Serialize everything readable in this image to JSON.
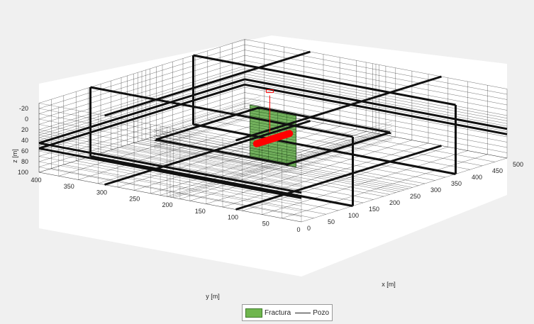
{
  "chart_data": {
    "type": "3d-grid",
    "xlabel": "x [m]",
    "ylabel": "y [m]",
    "zlabel": "z [m]",
    "xlim": [
      0,
      500
    ],
    "ylim": [
      0,
      400
    ],
    "zlim": [
      -30,
      100
    ],
    "z_reversed": true,
    "x_ticks": [
      "0",
      "50",
      "100",
      "150",
      "200",
      "250",
      "300",
      "350",
      "400",
      "450",
      "500"
    ],
    "y_ticks": [
      "0",
      "50",
      "100",
      "150",
      "200",
      "250",
      "300",
      "350",
      "400"
    ],
    "z_ticks": [
      "-20",
      "0",
      "20",
      "40",
      "60",
      "80",
      "100"
    ],
    "grid_x": [
      0,
      30,
      60,
      90,
      120,
      150,
      175,
      200,
      215,
      230,
      240,
      250,
      260,
      270,
      285,
      300,
      325,
      350,
      380,
      410,
      440,
      470,
      500
    ],
    "grid_y": [
      0,
      30,
      60,
      90,
      120,
      145,
      170,
      185,
      195,
      200,
      205,
      215,
      230,
      255,
      280,
      310,
      340,
      370,
      400
    ],
    "grid_z": [
      -30,
      -20,
      -10,
      0,
      10,
      20,
      25,
      30,
      35,
      40,
      45,
      50,
      55,
      60,
      70,
      80,
      90,
      100
    ],
    "bold_x": [
      125,
      375
    ],
    "bold_y": [
      100,
      300
    ],
    "bold_z": [
      45,
      55
    ],
    "fracture": {
      "x": 250,
      "y": [
        165,
        235
      ],
      "z": [
        -5,
        95
      ],
      "color": "#5fa845"
    },
    "well": {
      "x": [
        210,
        290
      ],
      "y": 200,
      "z": 50,
      "color": "#ff0000"
    },
    "survey_line": {
      "x": 250,
      "y": 205,
      "z": [
        -30,
        40
      ],
      "color": "#ff0000"
    },
    "legend": [
      {
        "label": "Fractura",
        "kind": "patch"
      },
      {
        "label": "Pozo",
        "kind": "line"
      }
    ],
    "legend_position": "bottom-center"
  },
  "colors": {
    "axes_bg": "#ffffff",
    "figure_bg": "#f0f0f0",
    "grid": "#000000"
  }
}
